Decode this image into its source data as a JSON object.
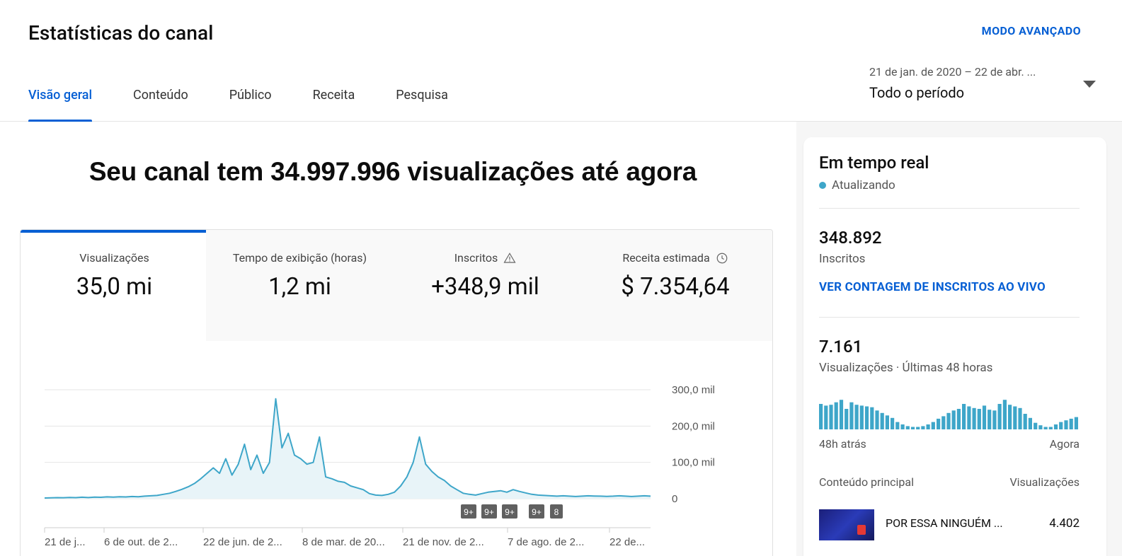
{
  "header": {
    "title": "Estatísticas do canal",
    "advanced_mode": "MODO AVANÇADO",
    "tabs": [
      {
        "label": "Visão geral",
        "active": true
      },
      {
        "label": "Conteúdo",
        "active": false
      },
      {
        "label": "Público",
        "active": false
      },
      {
        "label": "Receita",
        "active": false
      },
      {
        "label": "Pesquisa",
        "active": false
      }
    ],
    "period": {
      "range": "21 de jan. de 2020 – 22 de abr. ...",
      "label": "Todo o período"
    }
  },
  "main": {
    "headline": "Seu canal tem 34.997.996 visualizações até agora",
    "metrics": [
      {
        "label": "Visualizações",
        "value": "35,0 mi",
        "icon": null
      },
      {
        "label": "Tempo de exibição (horas)",
        "value": "1,2 mi",
        "icon": null
      },
      {
        "label": "Inscritos",
        "value": "+348,9 mil",
        "icon": "warning-icon"
      },
      {
        "label": "Receita estimada",
        "value": "$ 7.354,64",
        "icon": "clock-icon"
      }
    ]
  },
  "chart_data": {
    "type": "area",
    "y_tick_labels": [
      "300,0 mil",
      "200,0 mil",
      "100,0 mil",
      "0"
    ],
    "ylim": [
      0,
      300000
    ],
    "x_tick_labels": [
      "21 de j...",
      "6 de out. de 2...",
      "22 de jun. de 2...",
      "8 de mar. de 20...",
      "21 de nov. de 2...",
      "7 de ago. de 2...",
      "22 de..."
    ],
    "markers": [
      "9+",
      "9+",
      "9+",
      "9+",
      "8"
    ],
    "series": [
      {
        "values": [
          2000,
          2500,
          3000,
          2800,
          3500,
          3000,
          4000,
          3200,
          4200,
          3800,
          5000,
          4500,
          5200,
          4800,
          6000,
          5500,
          7000,
          8000,
          9000,
          12000,
          15000,
          20000,
          26000,
          33000,
          42000,
          55000,
          70000,
          85000,
          70000,
          110000,
          65000,
          95000,
          150000,
          80000,
          120000,
          70000,
          100000,
          275000,
          140000,
          180000,
          120000,
          110000,
          95000,
          100000,
          170000,
          60000,
          55000,
          48000,
          45000,
          35000,
          30000,
          25000,
          14000,
          10000,
          9000,
          12000,
          18000,
          35000,
          60000,
          100000,
          170000,
          95000,
          75000,
          60000,
          50000,
          35000,
          25000,
          15000,
          12000,
          10000,
          14000,
          18000,
          20000,
          22000,
          18000,
          25000,
          20000,
          16000,
          12000,
          10000,
          9000,
          8000,
          7000,
          8000,
          7000,
          6000,
          7000,
          8000,
          7500,
          7000,
          6500,
          7000,
          8000,
          7000,
          6000,
          7000,
          8000,
          7000
        ]
      }
    ]
  },
  "realtime": {
    "title": "Em tempo real",
    "status": "Atualizando",
    "subscribers_value": "348.892",
    "subscribers_label": "Inscritos",
    "live_link": "VER CONTAGEM DE INSCRITOS AO VIVO",
    "views_value": "7.161",
    "views_label": "Visualizações · Últimas 48 horas",
    "bars": [
      0.62,
      0.58,
      0.6,
      0.66,
      0.72,
      0.5,
      0.66,
      0.6,
      0.58,
      0.56,
      0.54,
      0.46,
      0.4,
      0.34,
      0.28,
      0.18,
      0.12,
      0.08,
      0.06,
      0.06,
      0.08,
      0.12,
      0.18,
      0.26,
      0.32,
      0.4,
      0.46,
      0.5,
      0.62,
      0.56,
      0.52,
      0.5,
      0.58,
      0.48,
      0.46,
      0.62,
      0.72,
      0.6,
      0.56,
      0.52,
      0.38,
      0.28,
      0.16,
      0.1,
      0.06,
      0.06,
      0.12,
      0.18,
      0.22,
      0.26,
      0.3
    ],
    "bars_start": "48h atrás",
    "bars_end": "Agora",
    "top_content_label": "Conteúdo principal",
    "top_content_metric": "Visualizações",
    "top_video": {
      "title": "POR ESSA NINGUÉM ...",
      "views": "4.402"
    }
  },
  "colors": {
    "accent": "#065fd4",
    "chart_line": "#3ea6c9",
    "chart_fill": "#e8f4f8"
  }
}
